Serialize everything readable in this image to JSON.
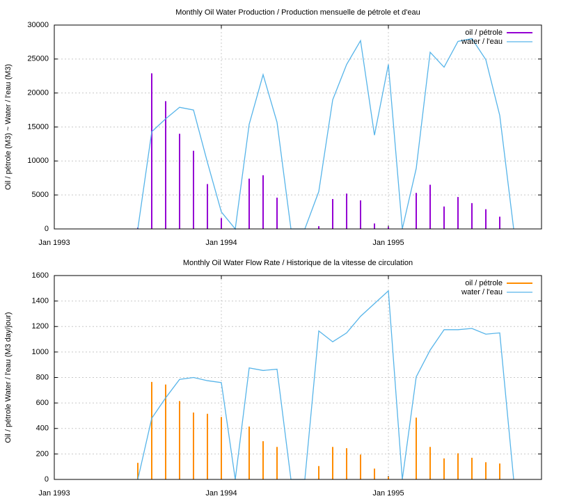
{
  "chart_data": [
    {
      "type": "combo",
      "title": "Monthly Oil  Water Production / Production mensuelle de pétrole et d'eau",
      "ylabel": "Oil / pétrole (M3) ~  Water / l'eau (M3)",
      "x": [
        "1993-07",
        "1993-08",
        "1993-09",
        "1993-10",
        "1993-11",
        "1993-12",
        "1994-01",
        "1994-02",
        "1994-03",
        "1994-04",
        "1994-05",
        "1994-06",
        "1994-07",
        "1994-08",
        "1994-09",
        "1994-10",
        "1994-11",
        "1994-12",
        "1995-01",
        "1995-02",
        "1995-03",
        "1995-04",
        "1995-05",
        "1995-06",
        "1995-07",
        "1995-08",
        "1995-09",
        "1995-10"
      ],
      "xlim": [
        "1993-01",
        "1995-12"
      ],
      "xticks": [
        {
          "value": "1993-01",
          "label": "Jan 1993"
        },
        {
          "value": "1994-01",
          "label": "Jan 1994"
        },
        {
          "value": "1995-01",
          "label": "Jan 1995"
        }
      ],
      "ylim": [
        0,
        30000
      ],
      "yticks": [
        0,
        5000,
        10000,
        15000,
        20000,
        25000,
        30000
      ],
      "grid": true,
      "legend": "top-right",
      "series": [
        {
          "name": "oil / pétrole",
          "kind": "bar",
          "color": "#9400d3",
          "values": [
            200,
            22900,
            18800,
            14000,
            11500,
            6600,
            1600,
            0,
            7400,
            7900,
            4600,
            0,
            0,
            400,
            4400,
            5200,
            4200,
            800,
            300,
            0,
            5300,
            6500,
            3300,
            4700,
            3800,
            2900,
            1800,
            0
          ]
        },
        {
          "name": "water / l'eau",
          "kind": "line",
          "color": "#56b4e9",
          "values": [
            0,
            14300,
            16200,
            17900,
            17500,
            9800,
            2500,
            0,
            15400,
            22700,
            15700,
            0,
            0,
            5500,
            19000,
            24200,
            27700,
            13800,
            24200,
            0,
            8900,
            26000,
            23800,
            27600,
            28000,
            24900,
            16700,
            0
          ]
        }
      ]
    },
    {
      "type": "combo",
      "title": "Monthly Oil  Water Flow Rate / Historique de la vitesse de circulation",
      "ylabel": "Oil / pétrole  Water / l'eau (M3 day/jour)",
      "x": [
        "1993-07",
        "1993-08",
        "1993-09",
        "1993-10",
        "1993-11",
        "1993-12",
        "1994-01",
        "1994-02",
        "1994-03",
        "1994-04",
        "1994-05",
        "1994-06",
        "1994-07",
        "1994-08",
        "1994-09",
        "1994-10",
        "1994-11",
        "1994-12",
        "1995-01",
        "1995-02",
        "1995-03",
        "1995-04",
        "1995-05",
        "1995-06",
        "1995-07",
        "1995-08",
        "1995-09",
        "1995-10"
      ],
      "xlim": [
        "1993-01",
        "1995-12"
      ],
      "xticks": [
        {
          "value": "1993-01",
          "label": "Jan 1993"
        },
        {
          "value": "1994-01",
          "label": "Jan 1994"
        },
        {
          "value": "1995-01",
          "label": "Jan 1995"
        }
      ],
      "ylim": [
        0,
        1600
      ],
      "yticks": [
        0,
        200,
        400,
        600,
        800,
        1000,
        1200,
        1400,
        1600
      ],
      "grid": true,
      "legend": "top-right",
      "series": [
        {
          "name": "oil / pétrole",
          "kind": "bar",
          "color": "#ff8c00",
          "values": [
            130,
            765,
            745,
            615,
            525,
            515,
            490,
            0,
            415,
            300,
            255,
            0,
            0,
            105,
            255,
            245,
            195,
            85,
            20,
            0,
            485,
            255,
            165,
            205,
            170,
            135,
            125,
            0
          ]
        },
        {
          "name": "water / l'eau",
          "kind": "line",
          "color": "#56b4e9",
          "values": [
            0,
            480,
            640,
            785,
            800,
            775,
            760,
            0,
            875,
            855,
            865,
            0,
            0,
            1165,
            1080,
            1150,
            1280,
            1380,
            1480,
            0,
            805,
            1015,
            1175,
            1175,
            1185,
            1140,
            1150,
            0
          ]
        }
      ]
    }
  ]
}
